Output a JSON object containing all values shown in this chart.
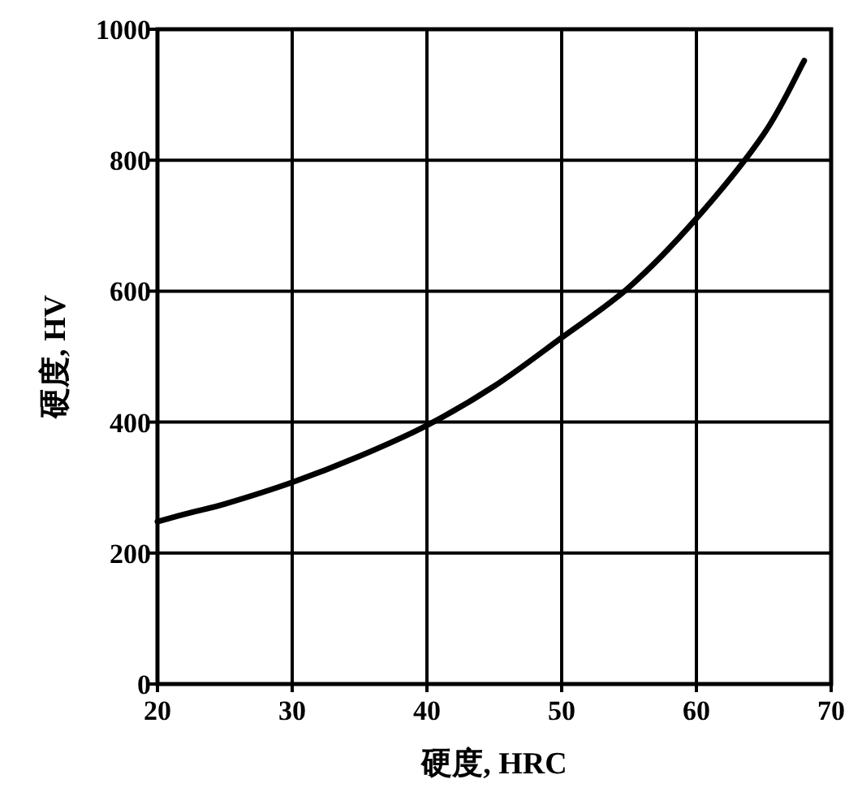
{
  "chart_data": {
    "type": "line",
    "xlabel": "硬度, HRC",
    "ylabel": "硬度, HV",
    "x": [
      20,
      22.5,
      25,
      30,
      35,
      40,
      45,
      50,
      55,
      60,
      65,
      68
    ],
    "series": [
      {
        "color": "#000000",
        "values": [
          248,
          262,
          275,
          308,
          348,
          395,
          455,
          529,
          606,
          711,
          840,
          952
        ]
      }
    ],
    "xlim": [
      20,
      70
    ],
    "xticks": [
      20,
      30,
      40,
      50,
      60,
      70
    ],
    "ylim": [
      0,
      1000
    ],
    "yticks": [
      0,
      200,
      400,
      600,
      800,
      1000
    ],
    "grid": true,
    "marker": "none",
    "line_style": "solid"
  }
}
